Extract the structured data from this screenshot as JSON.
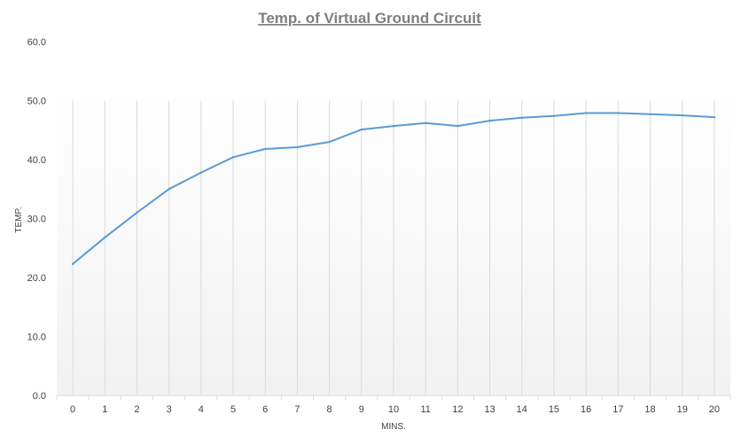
{
  "chart_data": {
    "type": "line",
    "title": "Temp. of Virtual Ground Circuit",
    "xlabel": "MINS.",
    "ylabel": "TEMP.",
    "categories": [
      "0",
      "1",
      "2",
      "3",
      "4",
      "5",
      "6",
      "7",
      "8",
      "9",
      "10",
      "11",
      "12",
      "13",
      "14",
      "15",
      "16",
      "17",
      "18",
      "19",
      "20"
    ],
    "series": [
      {
        "values": [
          22.3,
          26.8,
          31.0,
          35.0,
          37.8,
          40.4,
          41.8,
          42.1,
          43.0,
          45.1,
          45.7,
          46.2,
          45.7,
          46.6,
          47.1,
          47.4,
          47.9,
          47.9,
          47.7,
          47.5,
          47.2
        ],
        "color": "#5b9bd5"
      }
    ],
    "ylim": [
      0,
      60
    ],
    "yticks": [
      "0.0",
      "10.0",
      "20.0",
      "30.0",
      "40.0",
      "50.0",
      "60.0"
    ],
    "grid": "vertical",
    "legend": "none",
    "colors": {
      "line": "#5b9bd5",
      "grid": "#d9d9d9",
      "text": "#404040",
      "title": "#7f7f7f"
    }
  }
}
